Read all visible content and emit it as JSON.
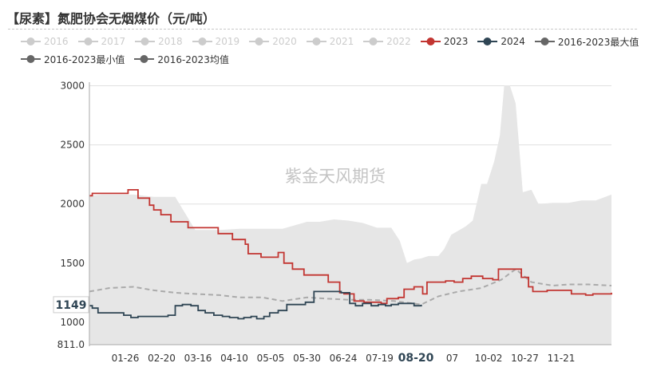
{
  "title": "【尿素】氮肥协会无烟煤价（元/吨）",
  "watermark": "紫金天风期货",
  "legend": {
    "rows": [
      [
        {
          "label": "2016",
          "color": "#cccccc",
          "active": false
        },
        {
          "label": "2017",
          "color": "#cccccc",
          "active": false
        },
        {
          "label": "2018",
          "color": "#cccccc",
          "active": false
        },
        {
          "label": "2019",
          "color": "#cccccc",
          "active": false
        },
        {
          "label": "2020",
          "color": "#cccccc",
          "active": false
        },
        {
          "label": "2021",
          "color": "#cccccc",
          "active": false
        },
        {
          "label": "2022",
          "color": "#cccccc",
          "active": false
        },
        {
          "label": "2023",
          "color": "#c23531",
          "active": true
        },
        {
          "label": "2024",
          "color": "#2f4554",
          "active": true
        },
        {
          "label": "2016-2023最大值",
          "color": "#666666",
          "active": true
        }
      ],
      [
        {
          "label": "2016-2023最小值",
          "color": "#666666",
          "active": true
        },
        {
          "label": "2016-2023均值",
          "color": "#666666",
          "active": true
        }
      ]
    ]
  },
  "axis": {
    "y_ticks": [
      "3000",
      "2500",
      "2000",
      "1500",
      "1000",
      "811.0"
    ],
    "x_ticks": [
      "01-26",
      "02-20",
      "03-16",
      "04-10",
      "05-05",
      "05-30",
      "06-24",
      "07-19",
      "08-20",
      "07",
      "10-02",
      "10-27",
      "11-21"
    ],
    "pointer_x": "08-20",
    "pointer_y": "1149"
  },
  "colors": {
    "y2023": "#c23531",
    "y2024": "#2f4554",
    "band": "#e6e6e6",
    "mean": "#aaaaaa",
    "grid": "#e0e0e0",
    "axis_text": "#333333"
  },
  "chart_data": {
    "type": "line",
    "x_range": [
      "01-01",
      "12-31"
    ],
    "ylim": [
      811,
      3030
    ],
    "series": [
      {
        "name": "2023",
        "x": [
          "01-01",
          "01-03",
          "01-05",
          "01-26",
          "01-28",
          "02-04",
          "02-07",
          "02-12",
          "02-15",
          "02-20",
          "02-27",
          "03-05",
          "03-10",
          "03-16",
          "03-26",
          "03-31",
          "04-03",
          "04-10",
          "04-14",
          "04-19",
          "04-21",
          "04-30",
          "05-05",
          "05-08",
          "05-12",
          "05-16",
          "05-22",
          "05-30",
          "06-04",
          "06-11",
          "06-16",
          "06-24",
          "06-27",
          "07-04",
          "07-11",
          "07-19",
          "07-23",
          "07-27",
          "08-04",
          "08-08",
          "08-15",
          "08-19",
          "08-21",
          "08-24",
          "09-06",
          "09-12",
          "09-18",
          "09-24",
          "10-02",
          "10-09",
          "10-13",
          "10-27",
          "10-29",
          "11-03",
          "11-06",
          "11-10",
          "11-16",
          "11-28",
          "12-03",
          "12-13",
          "12-18",
          "12-23",
          "12-31"
        ],
        "values": [
          2070,
          2090,
          2090,
          2090,
          2120,
          2050,
          2050,
          1990,
          1950,
          1910,
          1850,
          1850,
          1800,
          1800,
          1800,
          1750,
          1750,
          1700,
          1700,
          1660,
          1580,
          1550,
          1550,
          1550,
          1590,
          1500,
          1450,
          1400,
          1400,
          1400,
          1340,
          1250,
          1240,
          1180,
          1170,
          1170,
          1160,
          1200,
          1210,
          1280,
          1300,
          1300,
          1240,
          1340,
          1350,
          1340,
          1370,
          1390,
          1370,
          1360,
          1450,
          1450,
          1380,
          1300,
          1260,
          1260,
          1270,
          1270,
          1240,
          1230,
          1240,
          1240,
          1250
        ]
      },
      {
        "name": "2024",
        "x": [
          "01-01",
          "01-03",
          "01-07",
          "01-12",
          "01-17",
          "01-25",
          "01-30",
          "02-04",
          "02-10",
          "02-15",
          "02-20",
          "02-25",
          "03-01",
          "03-06",
          "03-12",
          "03-17",
          "03-22",
          "03-28",
          "04-03",
          "04-08",
          "04-14",
          "04-18",
          "04-23",
          "04-27",
          "05-02",
          "05-06",
          "05-12",
          "05-18",
          "05-25",
          "05-31",
          "06-06",
          "06-14",
          "06-19",
          "06-25",
          "07-01",
          "07-05",
          "07-10",
          "07-16",
          "07-21",
          "07-26",
          "07-30",
          "08-04",
          "08-10",
          "08-15",
          "08-20"
        ],
        "values": [
          1140,
          1120,
          1080,
          1080,
          1080,
          1060,
          1040,
          1050,
          1050,
          1050,
          1050,
          1060,
          1140,
          1150,
          1140,
          1100,
          1080,
          1060,
          1050,
          1040,
          1030,
          1040,
          1050,
          1030,
          1050,
          1080,
          1100,
          1150,
          1150,
          1170,
          1260,
          1260,
          1260,
          1250,
          1160,
          1140,
          1160,
          1140,
          1150,
          1140,
          1150,
          1160,
          1160,
          1140,
          1149
        ]
      },
      {
        "name": "2016-2023最大值",
        "x": [
          "01-01",
          "01-10",
          "01-20",
          "02-01",
          "02-15",
          "03-01",
          "03-15",
          "04-01",
          "04-15",
          "05-01",
          "05-15",
          "06-01",
          "06-10",
          "06-20",
          "06-30",
          "07-10",
          "07-20",
          "07-30",
          "08-05",
          "08-10",
          "08-15",
          "08-20",
          "08-25",
          "09-01",
          "09-05",
          "09-10",
          "09-20",
          "09-25",
          "10-01",
          "10-05",
          "10-10",
          "10-14",
          "10-17",
          "10-21",
          "10-25",
          "10-30",
          "11-05",
          "11-10",
          "11-20",
          "12-01",
          "12-10",
          "12-20",
          "12-31"
        ],
        "values": [
          2070,
          2080,
          2080,
          2080,
          2060,
          2060,
          1780,
          1780,
          1790,
          1790,
          1790,
          1850,
          1850,
          1870,
          1860,
          1840,
          1800,
          1800,
          1690,
          1500,
          1530,
          1540,
          1560,
          1560,
          1620,
          1740,
          1810,
          1860,
          2170,
          2170,
          2360,
          2580,
          3000,
          3000,
          2850,
          2100,
          2120,
          2000,
          2010,
          2010,
          2030,
          2030,
          2080
        ]
      },
      {
        "name": "2016-2023最小值",
        "x": [
          "01-01",
          "12-31"
        ],
        "values": [
          811,
          811
        ]
      },
      {
        "name": "2016-2023均值",
        "x": [
          "01-01",
          "01-15",
          "02-01",
          "02-15",
          "03-01",
          "03-15",
          "04-01",
          "04-15",
          "05-01",
          "05-15",
          "06-01",
          "06-15",
          "07-01",
          "07-15",
          "08-01",
          "08-20",
          "09-01",
          "09-15",
          "10-01",
          "10-15",
          "10-25",
          "11-05",
          "11-20",
          "12-01",
          "12-15",
          "12-31"
        ],
        "values": [
          1260,
          1290,
          1300,
          1270,
          1250,
          1240,
          1230,
          1210,
          1210,
          1180,
          1210,
          1200,
          1190,
          1190,
          1180,
          1150,
          1220,
          1260,
          1290,
          1360,
          1450,
          1340,
          1310,
          1320,
          1320,
          1310
        ]
      }
    ]
  }
}
